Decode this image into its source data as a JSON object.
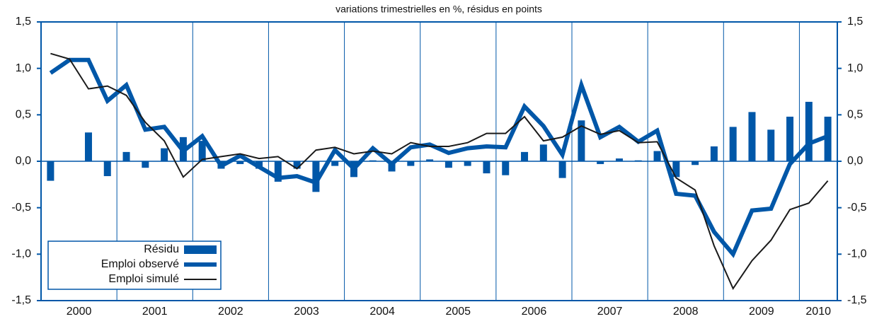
{
  "chart_data": {
    "type": "bar-line",
    "title": "variations trimestrielles en %, résidus en points",
    "year_labels": [
      "2000",
      "2001",
      "2002",
      "2003",
      "2004",
      "2005",
      "2006",
      "2007",
      "2008",
      "2009",
      "2010"
    ],
    "series": [
      {
        "name": "Résidu",
        "type": "bar",
        "color": "#0057a8",
        "values": [
          -0.21,
          0,
          0.31,
          -0.16,
          0.1,
          -0.07,
          0.14,
          0.26,
          0.22,
          -0.08,
          -0.03,
          -0.08,
          -0.22,
          -0.08,
          -0.33,
          -0.05,
          -0.17,
          0.01,
          -0.11,
          -0.05,
          0.02,
          -0.07,
          -0.05,
          -0.13,
          -0.15,
          0.1,
          0.18,
          -0.18,
          0.44,
          -0.03,
          0.03,
          0.01,
          0.11,
          -0.17,
          -0.04,
          0.16,
          0.37,
          0.53,
          0.34,
          0.48,
          0.64,
          0.48
        ]
      },
      {
        "name": "Emploi observé",
        "type": "line",
        "color": "#0057a8",
        "width": 6,
        "values": [
          0.95,
          1.09,
          1.09,
          0.65,
          0.82,
          0.34,
          0.37,
          0.11,
          0.27,
          -0.05,
          0.06,
          -0.06,
          -0.18,
          -0.16,
          -0.23,
          0.12,
          -0.08,
          0.14,
          -0.03,
          0.15,
          0.18,
          0.09,
          0.14,
          0.16,
          0.15,
          0.59,
          0.38,
          0.07,
          0.82,
          0.26,
          0.37,
          0.21,
          0.33,
          -0.35,
          -0.37,
          -0.76,
          -1.0,
          -0.53,
          -0.51,
          -0.03,
          0.19,
          0.27
        ]
      },
      {
        "name": "Emploi simulé",
        "type": "line",
        "color": "#1a1a1a",
        "width": 2,
        "values": [
          1.16,
          1.1,
          0.78,
          0.81,
          0.71,
          0.42,
          0.22,
          -0.17,
          0.02,
          0.05,
          0.08,
          0.03,
          0.05,
          -0.08,
          0.12,
          0.15,
          0.08,
          0.11,
          0.08,
          0.2,
          0.16,
          0.16,
          0.2,
          0.3,
          0.3,
          0.48,
          0.22,
          0.26,
          0.38,
          0.29,
          0.33,
          0.2,
          0.21,
          -0.18,
          -0.31,
          -0.91,
          -1.37,
          -1.07,
          -0.85,
          -0.52,
          -0.45,
          -0.21
        ]
      }
    ],
    "ylim": [
      -1.5,
      1.5
    ],
    "yticks": [
      {
        "value": -1.5,
        "label": "-1,5"
      },
      {
        "value": -1,
        "label": "-1,0"
      },
      {
        "value": -0.5,
        "label": "-0,5"
      },
      {
        "value": 0,
        "label": "0,0"
      },
      {
        "value": 0.5,
        "label": "0,5"
      },
      {
        "value": 1,
        "label": "1,0"
      },
      {
        "value": 1.5,
        "label": "1,5"
      }
    ],
    "y2lim": [
      -1.5,
      1.5
    ],
    "y2ticks": [
      {
        "value": -1.5,
        "label": "-1,5"
      },
      {
        "value": -1,
        "label": "-1,0"
      },
      {
        "value": -0.5,
        "label": "-0,5"
      },
      {
        "value": 0,
        "label": "0,0"
      },
      {
        "value": 0.5,
        "label": "0,5"
      },
      {
        "value": 1,
        "label": "1,0"
      },
      {
        "value": 1.5,
        "label": "1,5"
      }
    ],
    "axis_color": "#0057a8",
    "legend": "bottom-left"
  }
}
